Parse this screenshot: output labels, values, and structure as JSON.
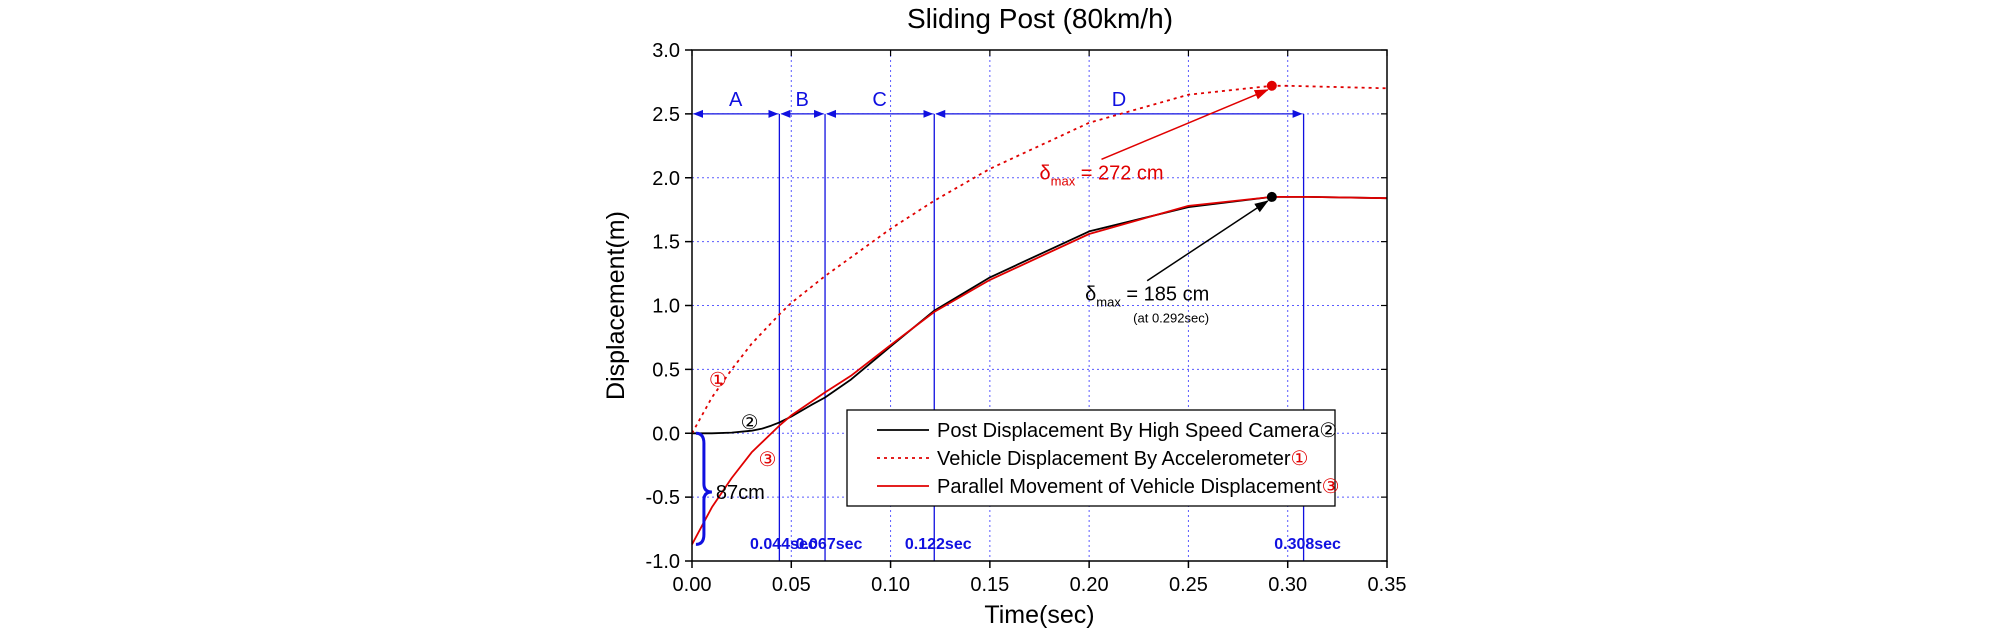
{
  "chart_data": {
    "type": "line",
    "title": "Sliding Post (80km/h)",
    "xlabel": "Time(sec)",
    "ylabel": "Displacement(m)",
    "xlim": [
      0.0,
      0.35
    ],
    "ylim": [
      -1.0,
      3.0
    ],
    "x_ticks": [
      "0.00",
      "0.05",
      "0.10",
      "0.15",
      "0.20",
      "0.25",
      "0.30",
      "0.35"
    ],
    "y_ticks": [
      "-1.0",
      "-0.5",
      "0.0",
      "0.5",
      "1.0",
      "1.5",
      "2.0",
      "2.5",
      "3.0"
    ],
    "grid": true,
    "legend_position": "bottom-right",
    "colors": {
      "post": "#000000",
      "vehicle": "#e00000",
      "annotation": "#1010e0"
    },
    "series": [
      {
        "name": "Post Displacement By High Speed Camera",
        "marker": "②",
        "color": "#000000",
        "style": "solid",
        "x": [
          0.0,
          0.01,
          0.02,
          0.03,
          0.035,
          0.04,
          0.044,
          0.05,
          0.06,
          0.067,
          0.08,
          0.1,
          0.122,
          0.15,
          0.2,
          0.25,
          0.292,
          0.31,
          0.35
        ],
        "y": [
          0.0,
          0.0,
          0.005,
          0.02,
          0.035,
          0.06,
          0.085,
          0.13,
          0.22,
          0.28,
          0.42,
          0.68,
          0.96,
          1.22,
          1.58,
          1.77,
          1.85,
          1.85,
          1.84
        ]
      },
      {
        "name": "Vehicle Displacement By Accelerometer",
        "marker": "①",
        "color": "#e00000",
        "style": "dotted",
        "x": [
          0.0,
          0.01,
          0.02,
          0.03,
          0.044,
          0.05,
          0.067,
          0.1,
          0.122,
          0.15,
          0.2,
          0.25,
          0.292,
          0.3,
          0.35
        ],
        "y": [
          0.0,
          0.28,
          0.5,
          0.7,
          0.93,
          1.02,
          1.23,
          1.6,
          1.82,
          2.07,
          2.43,
          2.65,
          2.72,
          2.72,
          2.7
        ]
      },
      {
        "name": "Parallel Movement of Vehicle Displacement",
        "marker": "③",
        "color": "#e00000",
        "style": "solid",
        "x": [
          0.0,
          0.01,
          0.02,
          0.03,
          0.044,
          0.05,
          0.067,
          0.08,
          0.1,
          0.122,
          0.15,
          0.2,
          0.25,
          0.292,
          0.31,
          0.35
        ],
        "y": [
          -0.87,
          -0.58,
          -0.35,
          -0.15,
          0.06,
          0.14,
          0.32,
          0.45,
          0.69,
          0.95,
          1.2,
          1.56,
          1.78,
          1.85,
          1.85,
          1.84
        ]
      }
    ],
    "phases": [
      {
        "label": "A",
        "start": 0.0,
        "end": 0.044
      },
      {
        "label": "B",
        "start": 0.044,
        "end": 0.067
      },
      {
        "label": "C",
        "start": 0.067,
        "end": 0.122
      },
      {
        "label": "D",
        "start": 0.122,
        "end": 0.308
      }
    ],
    "phase_arrow_y": 2.5,
    "time_markers": [
      {
        "x": 0.044,
        "label": "0.044sec"
      },
      {
        "x": 0.067,
        "label": "0.067sec"
      },
      {
        "x": 0.122,
        "label": "0.122sec"
      },
      {
        "x": 0.308,
        "label": "0.308sec"
      }
    ],
    "annotations": {
      "vehicle_max": {
        "prefix": "δ",
        "sub": "max",
        "text": " = 272 cm",
        "point": [
          0.292,
          2.72
        ],
        "label_at": [
          0.175,
          2.05
        ],
        "color": "#e00000"
      },
      "post_max": {
        "prefix": "δ",
        "sub": "max",
        "text": " = 185 cm",
        "note": "(at 0.292sec)",
        "point": [
          0.292,
          1.85
        ],
        "label_at": [
          0.198,
          1.1
        ],
        "color": "#000000"
      },
      "offset": {
        "text": "87cm",
        "y_from": 0.0,
        "y_to": -0.87,
        "at_x": 0.006,
        "label_y": -0.46
      },
      "curve_markers": [
        {
          "text": "①",
          "at": [
            0.013,
            0.42
          ],
          "color": "#e00000"
        },
        {
          "text": "②",
          "at": [
            0.029,
            0.09
          ],
          "color": "#000000"
        },
        {
          "text": "③",
          "at": [
            0.038,
            -0.2
          ],
          "color": "#e00000"
        }
      ]
    }
  }
}
